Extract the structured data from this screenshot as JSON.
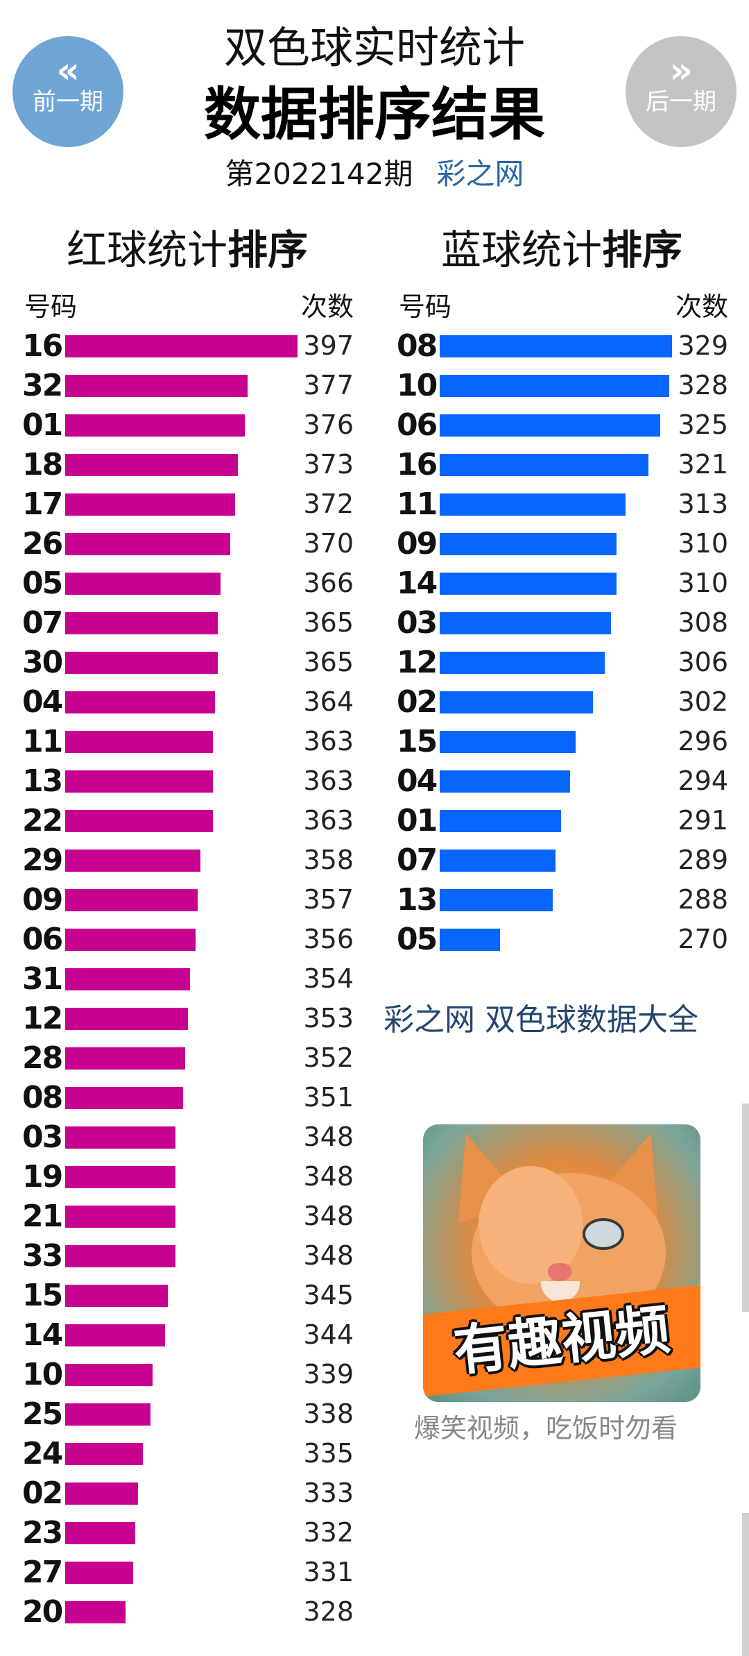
{
  "nav": {
    "prev_icon": "«",
    "prev_label": "前一期",
    "next_icon": "»",
    "next_label": "后一期"
  },
  "header": {
    "title_line1": "双色球实时统计",
    "title_line2": "数据排序结果",
    "issue": "第2022142期",
    "site": "彩之网"
  },
  "colors": {
    "red_bar": "#c8008f",
    "blue_bar": "#0866ff",
    "link": "#23466f"
  },
  "red": {
    "title_plain": "红球统计",
    "title_bold": "排序",
    "col_number": "号码",
    "col_count": "次数",
    "rows": [
      {
        "num": "16",
        "count": "397",
        "value": 397
      },
      {
        "num": "32",
        "count": "377",
        "value": 377
      },
      {
        "num": "01",
        "count": "376",
        "value": 376
      },
      {
        "num": "18",
        "count": "373",
        "value": 373
      },
      {
        "num": "17",
        "count": "372",
        "value": 372
      },
      {
        "num": "26",
        "count": "370",
        "value": 370
      },
      {
        "num": "05",
        "count": "366",
        "value": 366
      },
      {
        "num": "07",
        "count": "365",
        "value": 365
      },
      {
        "num": "30",
        "count": "365",
        "value": 365
      },
      {
        "num": "04",
        "count": "364",
        "value": 364
      },
      {
        "num": "11",
        "count": "363",
        "value": 363
      },
      {
        "num": "13",
        "count": "363",
        "value": 363
      },
      {
        "num": "22",
        "count": "363",
        "value": 363
      },
      {
        "num": "29",
        "count": "358",
        "value": 358
      },
      {
        "num": "09",
        "count": "357",
        "value": 357
      },
      {
        "num": "06",
        "count": "356",
        "value": 356
      },
      {
        "num": "31",
        "count": "354",
        "value": 354
      },
      {
        "num": "12",
        "count": "353",
        "value": 353
      },
      {
        "num": "28",
        "count": "352",
        "value": 352
      },
      {
        "num": "08",
        "count": "351",
        "value": 351
      },
      {
        "num": "03",
        "count": "348",
        "value": 348
      },
      {
        "num": "19",
        "count": "348",
        "value": 348
      },
      {
        "num": "21",
        "count": "348",
        "value": 348
      },
      {
        "num": "33",
        "count": "348",
        "value": 348
      },
      {
        "num": "15",
        "count": "345",
        "value": 345
      },
      {
        "num": "14",
        "count": "344",
        "value": 344
      },
      {
        "num": "10",
        "count": "339",
        "value": 339
      },
      {
        "num": "25",
        "count": "338",
        "value": 338
      },
      {
        "num": "24",
        "count": "335",
        "value": 335
      },
      {
        "num": "02",
        "count": "333",
        "value": 333
      },
      {
        "num": "23",
        "count": "332",
        "value": 332
      },
      {
        "num": "27",
        "count": "331",
        "value": 331
      },
      {
        "num": "20",
        "count": "328",
        "value": 328
      }
    ]
  },
  "blue": {
    "title_plain": "蓝球统计",
    "title_bold": "排序",
    "col_number": "号码",
    "col_count": "次数",
    "rows": [
      {
        "num": "08",
        "count": "329",
        "value": 329
      },
      {
        "num": "10",
        "count": "328",
        "value": 328
      },
      {
        "num": "06",
        "count": "325",
        "value": 325
      },
      {
        "num": "16",
        "count": "321",
        "value": 321
      },
      {
        "num": "11",
        "count": "313",
        "value": 313
      },
      {
        "num": "09",
        "count": "310",
        "value": 310
      },
      {
        "num": "14",
        "count": "310",
        "value": 310
      },
      {
        "num": "03",
        "count": "308",
        "value": 308
      },
      {
        "num": "12",
        "count": "306",
        "value": 306
      },
      {
        "num": "02",
        "count": "302",
        "value": 302
      },
      {
        "num": "15",
        "count": "296",
        "value": 296
      },
      {
        "num": "04",
        "count": "294",
        "value": 294
      },
      {
        "num": "01",
        "count": "291",
        "value": 291
      },
      {
        "num": "07",
        "count": "289",
        "value": 289
      },
      {
        "num": "13",
        "count": "288",
        "value": 288
      },
      {
        "num": "05",
        "count": "270",
        "value": 270
      }
    ]
  },
  "promo": {
    "link_text": "彩之网 双色球数据大全",
    "video_caption": "有趣视频",
    "video_text": "爆笑视频，吃饭时勿看"
  }
}
